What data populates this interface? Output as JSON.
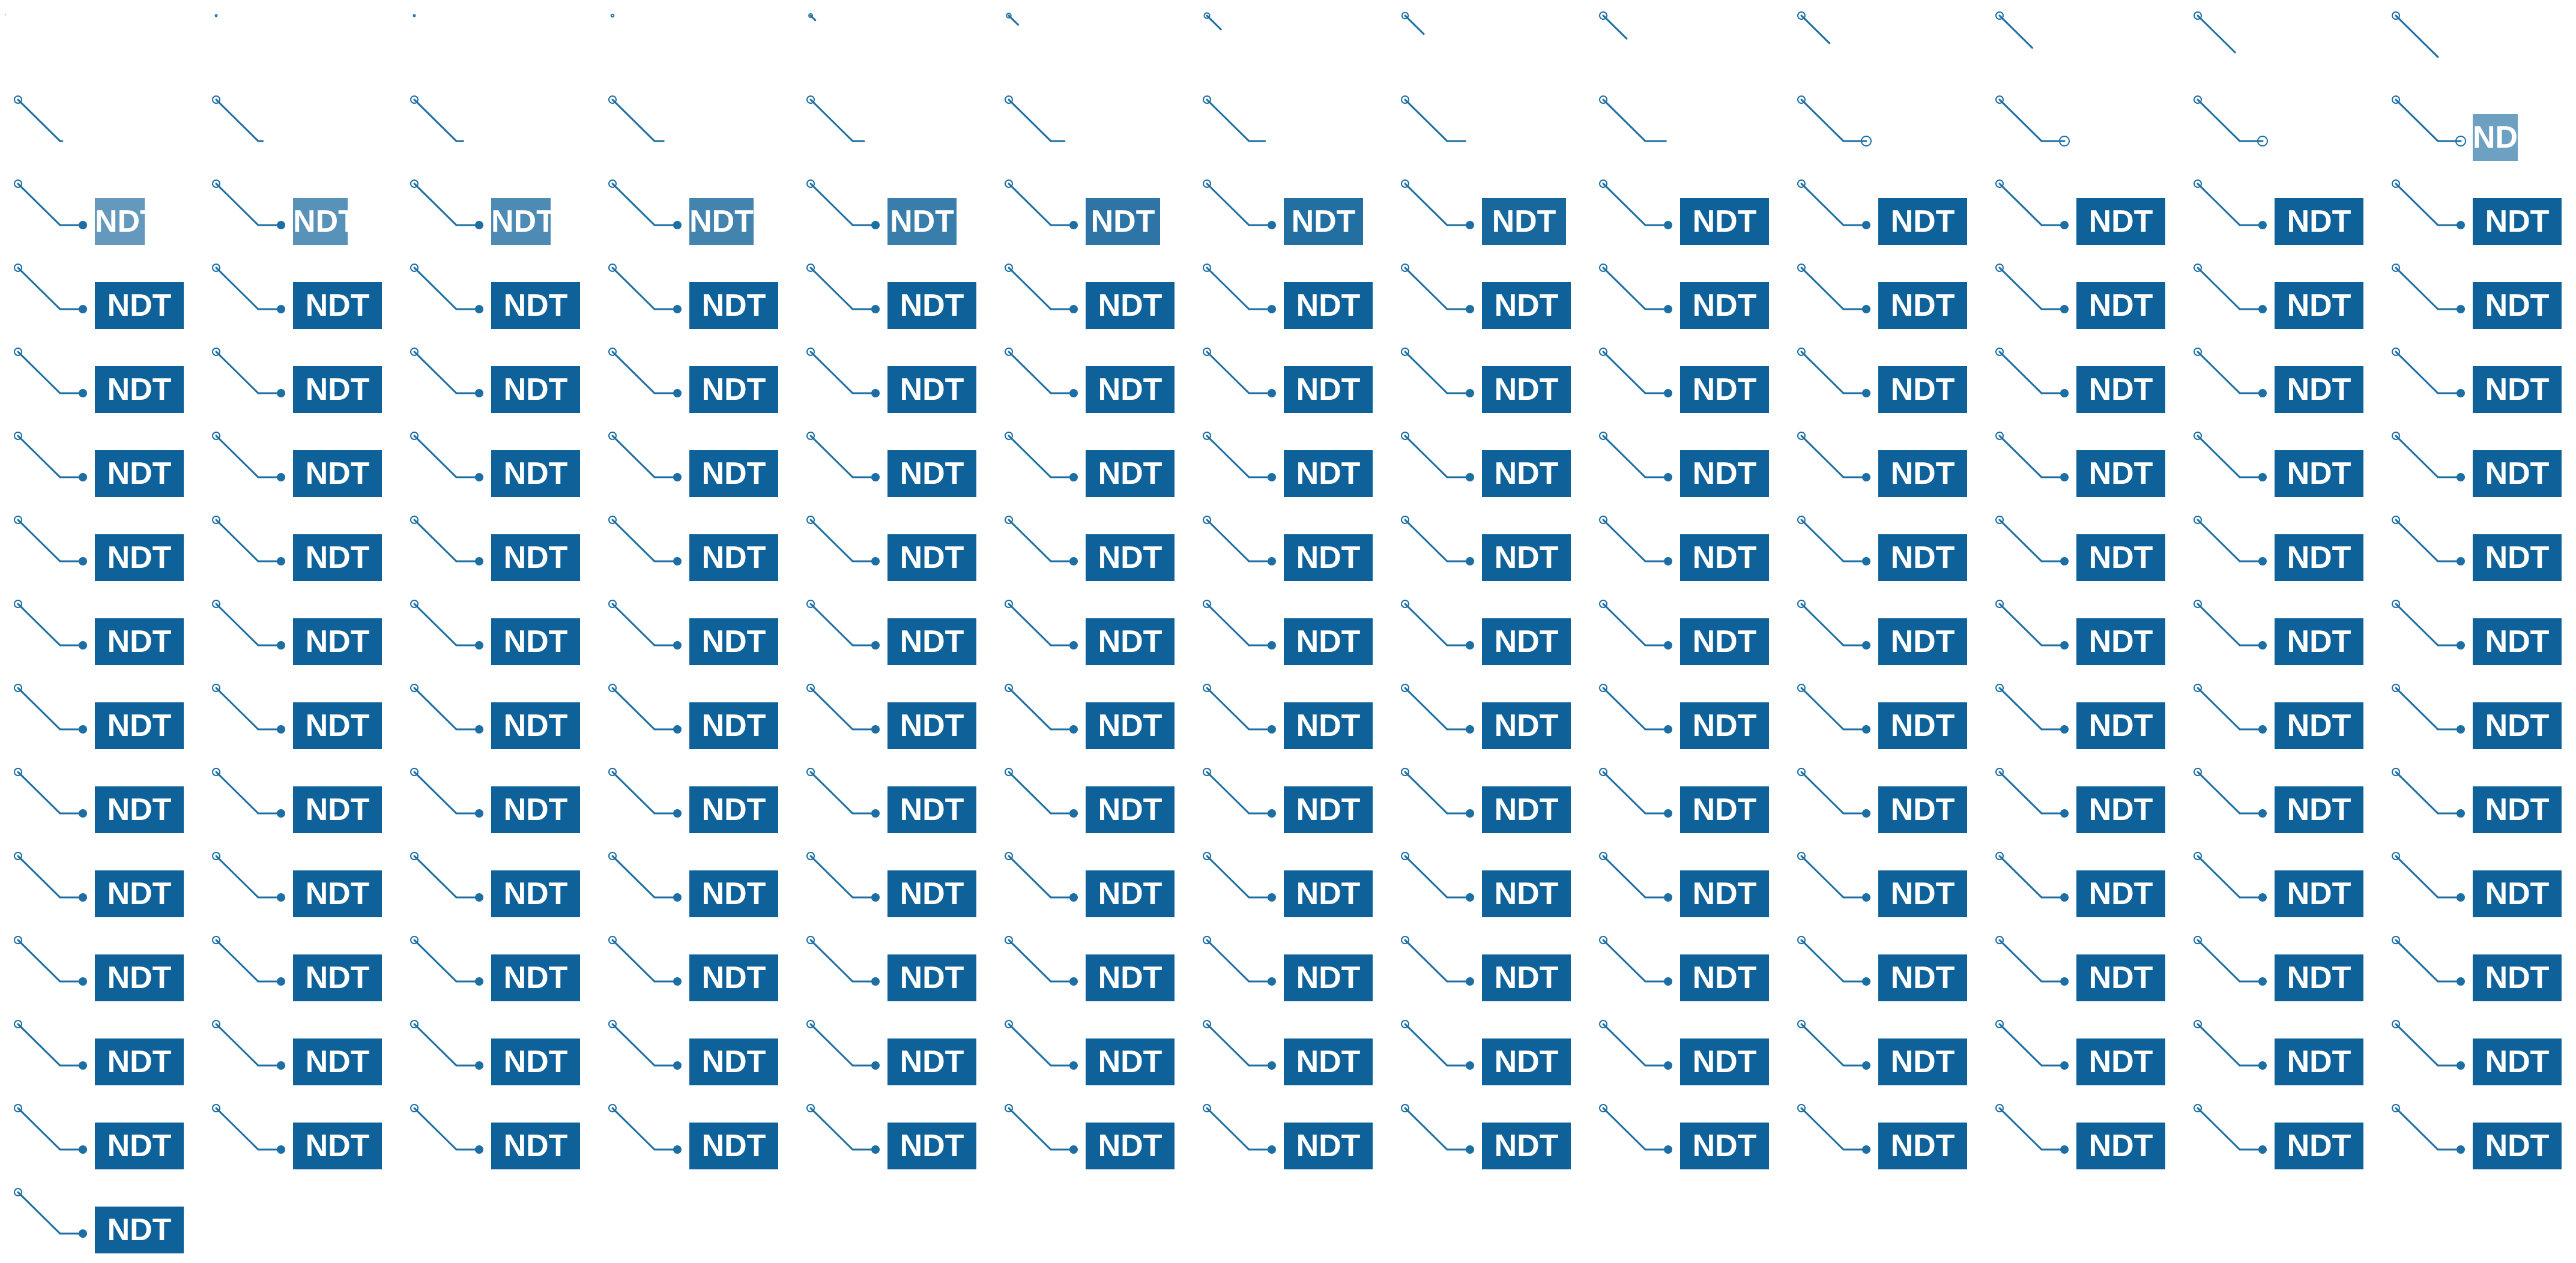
{
  "badge": {
    "text": "NDT",
    "background_color": "#0e6199",
    "text_color": "#ffffff"
  },
  "pointer": {
    "line_color": "#1d6ea3",
    "dot_color": "#1d6ea3"
  },
  "sheet": {
    "frames_per_row": 13,
    "row_count": 15,
    "frame_count": 183
  }
}
